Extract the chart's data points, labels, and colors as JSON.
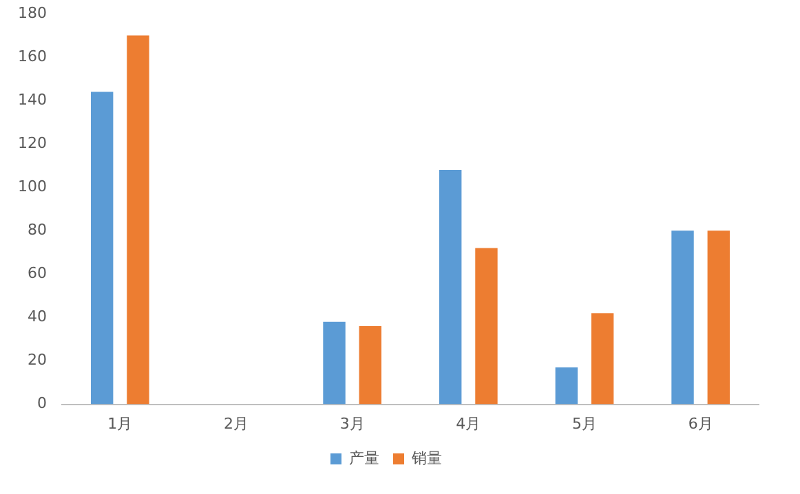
{
  "chart_data": {
    "type": "bar",
    "categories": [
      "1月",
      "2月",
      "3月",
      "4月",
      "5月",
      "6月"
    ],
    "series": [
      {
        "name": "产量",
        "color": "#5b9bd5",
        "values": [
          144,
          null,
          38,
          108,
          17,
          80
        ]
      },
      {
        "name": "销量",
        "color": "#ed7d31",
        "values": [
          170,
          null,
          36,
          72,
          42,
          80
        ]
      }
    ],
    "ylim": [
      0,
      180
    ],
    "yticks": [
      0,
      20,
      40,
      60,
      80,
      100,
      120,
      140,
      160,
      180
    ],
    "grid": false,
    "legend": "bottom"
  }
}
